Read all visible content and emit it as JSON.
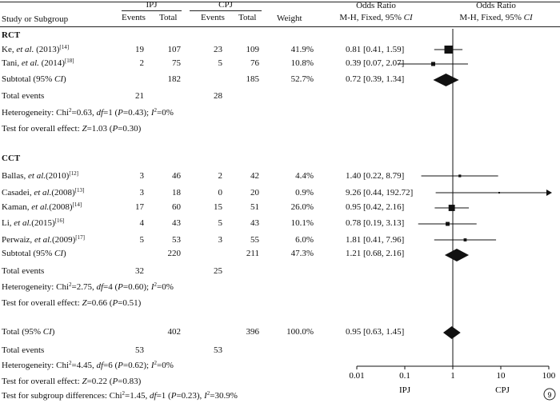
{
  "header": {
    "study": "Study or Subgroup",
    "group1": "IPJ",
    "group2": "CPJ",
    "events": "Events",
    "total": "Total",
    "weight": "Weight",
    "or_col": "Odds Ratio",
    "or_method": "M-H, Fixed, 95% CI",
    "plot_col": "Odds Ratio",
    "plot_method": "M-H, Fixed, 95% CI"
  },
  "groups": [
    {
      "label": "RCT",
      "studies": [
        {
          "name": "Ke, et al. (2013)",
          "ref": "[14]",
          "e1": "19",
          "t1": "107",
          "e2": "23",
          "t2": "109",
          "weight": "41.9%",
          "ci": "0.81 [0.41, 1.59]"
        },
        {
          "name": "Tani, et al. (2014)",
          "ref": "[18]",
          "e1": "2",
          "t1": "75",
          "e2": "5",
          "t2": "76",
          "weight": "10.8%",
          "ci": "0.39 [0.07, 2.07]"
        }
      ],
      "subtotal": {
        "label": "Subtotal (95% CI)",
        "t1": "182",
        "t2": "185",
        "weight": "52.7%",
        "ci": "0.72 [0.39, 1.34]"
      },
      "total_events": {
        "label": "Total events",
        "e1": "21",
        "e2": "28"
      },
      "heterogeneity": "Heterogeneity: Chi²=0.63, df=1 (P=0.43); I²=0%",
      "overall": "Test for overall effect: Z=1.03 (P=0.30)"
    },
    {
      "label": "CCT",
      "studies": [
        {
          "name": "Ballas, et al.(2010)",
          "ref": "[12]",
          "e1": "3",
          "t1": "46",
          "e2": "2",
          "t2": "42",
          "weight": "4.4%",
          "ci": "1.40 [0.22, 8.79]"
        },
        {
          "name": "Casadei, et al.(2008)",
          "ref": "[13]",
          "e1": "3",
          "t1": "18",
          "e2": "0",
          "t2": "20",
          "weight": "0.9%",
          "ci": "9.26 [0.44, 192.72]"
        },
        {
          "name": "Kaman, et al.(2008)",
          "ref": "[14]",
          "e1": "17",
          "t1": "60",
          "e2": "15",
          "t2": "51",
          "weight": "26.0%",
          "ci": "0.95 [0.42, 2.16]"
        },
        {
          "name": "Li, et al.(2015)",
          "ref": "[16]",
          "e1": "4",
          "t1": "43",
          "e2": "5",
          "t2": "43",
          "weight": "10.1%",
          "ci": "0.78 [0.19, 3.13]"
        },
        {
          "name": "Perwaiz, et al.(2009)",
          "ref": "[17]",
          "e1": "5",
          "t1": "53",
          "e2": "3",
          "t2": "55",
          "weight": "6.0%",
          "ci": "1.81 [0.41, 7.96]"
        }
      ],
      "subtotal": {
        "label": "Subtotal (95% CI)",
        "t1": "220",
        "t2": "211",
        "weight": "47.3%",
        "ci": "1.21 [0.68, 2.16]"
      },
      "total_events": {
        "label": "Total events",
        "e1": "32",
        "e2": "25"
      },
      "heterogeneity": "Heterogeneity: Chi²=2.75, df=4 (P=0.60); I²=0%",
      "overall": "Test for overall effect: Z=0.66 (P=0.51)"
    }
  ],
  "total": {
    "label": "Total (95% CI)",
    "t1": "402",
    "t2": "396",
    "weight": "100.0%",
    "ci": "0.95 [0.63, 1.45]"
  },
  "total_events": {
    "label": "Total events",
    "e1": "53",
    "e2": "53"
  },
  "heterogeneity": "Heterogeneity: Chi²=4.45, df=6 (P=0.62); I²=0%",
  "overall": "Test for overall effect: Z=0.22 (P=0.83)",
  "subgroup_diff": "Test for subgroup differences: Chi²=1.45, df=1 (P=0.23), I²=30.9%",
  "figure_number": "9",
  "chart_data": {
    "type": "forest",
    "xscale": "log",
    "xlim": [
      0.01,
      100
    ],
    "ticks": [
      "0.01",
      "0.1",
      "1",
      "10",
      "100"
    ],
    "tick_values": [
      0.01,
      0.1,
      1,
      10,
      100
    ],
    "favours_left": "IPJ",
    "favours_right": "CPJ",
    "studies": [
      {
        "or": 0.81,
        "lo": 0.41,
        "hi": 1.59,
        "w": 41.9
      },
      {
        "or": 0.39,
        "lo": 0.07,
        "hi": 2.07,
        "w": 10.8
      },
      {
        "or": 1.4,
        "lo": 0.22,
        "hi": 8.79,
        "w": 4.4
      },
      {
        "or": 9.26,
        "lo": 0.44,
        "hi": 192.72,
        "w": 0.9
      },
      {
        "or": 0.95,
        "lo": 0.42,
        "hi": 2.16,
        "w": 26.0
      },
      {
        "or": 0.78,
        "lo": 0.19,
        "hi": 3.13,
        "w": 10.1
      },
      {
        "or": 1.81,
        "lo": 0.41,
        "hi": 7.96,
        "w": 6.0
      }
    ],
    "diamonds": [
      {
        "or": 0.72,
        "lo": 0.39,
        "hi": 1.34
      },
      {
        "or": 1.21,
        "lo": 0.68,
        "hi": 2.16
      },
      {
        "or": 0.95,
        "lo": 0.63,
        "hi": 1.45
      }
    ]
  }
}
